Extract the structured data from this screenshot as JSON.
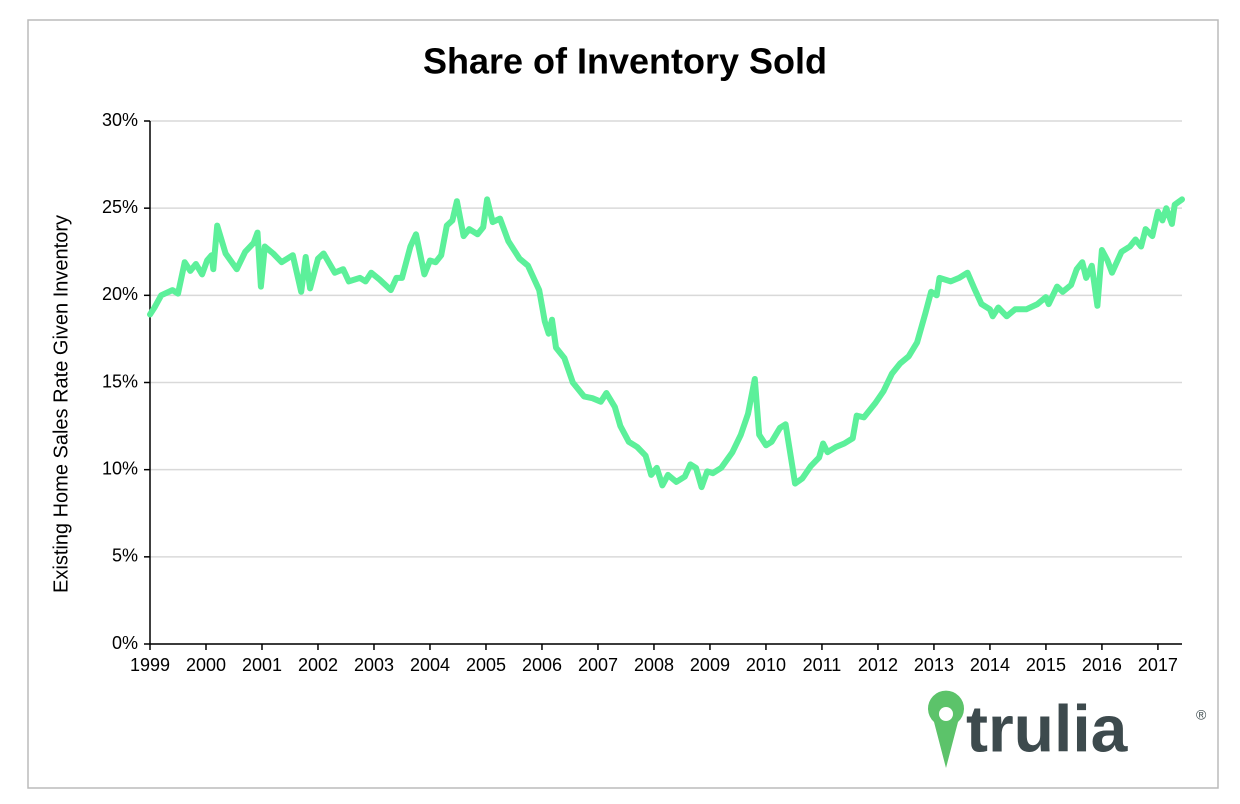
{
  "chart_data": {
    "type": "line",
    "title": "Share of Inventory Sold",
    "y_label": "Existing Home Sales Rate Given Inventory",
    "brand": "trulia",
    "brand_mark": "®",
    "xlim": [
      1999,
      2017.43
    ],
    "xticks": [
      1999,
      2000,
      2001,
      2002,
      2003,
      2004,
      2005,
      2006,
      2007,
      2008,
      2009,
      2010,
      2011,
      2012,
      2013,
      2014,
      2015,
      2016,
      2017
    ],
    "ylim": [
      0,
      30
    ],
    "yticks": [
      {
        "value": 0,
        "label": "0%"
      },
      {
        "value": 5,
        "label": "5%"
      },
      {
        "value": 10,
        "label": "10%"
      },
      {
        "value": 15,
        "label": "15%"
      },
      {
        "value": 20,
        "label": "20%"
      },
      {
        "value": 25,
        "label": "25%"
      },
      {
        "value": 30,
        "label": "30%"
      }
    ],
    "grid": true,
    "series": [
      {
        "name": "Share of Inventory Sold",
        "color": "#5cf09a",
        "x": [
          1999.0,
          1999.08,
          1999.2,
          1999.4,
          1999.5,
          1999.62,
          1999.72,
          1999.82,
          1999.93,
          2000.02,
          2000.1,
          2000.13,
          2000.2,
          2000.35,
          2000.55,
          2000.7,
          2000.85,
          2000.92,
          2000.98,
          2001.05,
          2001.2,
          2001.35,
          2001.55,
          2001.7,
          2001.78,
          2001.86,
          2002.0,
          2002.1,
          2002.3,
          2002.45,
          2002.55,
          2002.75,
          2002.85,
          2002.95,
          2003.1,
          2003.3,
          2003.4,
          2003.5,
          2003.65,
          2003.75,
          2003.9,
          2004.0,
          2004.1,
          2004.2,
          2004.3,
          2004.4,
          2004.48,
          2004.6,
          2004.7,
          2004.85,
          2004.95,
          2005.02,
          2005.12,
          2005.25,
          2005.4,
          2005.6,
          2005.75,
          2005.95,
          2006.05,
          2006.12,
          2006.18,
          2006.25,
          2006.4,
          2006.55,
          2006.75,
          2006.9,
          2007.05,
          2007.15,
          2007.3,
          2007.4,
          2007.55,
          2007.7,
          2007.85,
          2007.95,
          2008.05,
          2008.15,
          2008.25,
          2008.4,
          2008.55,
          2008.65,
          2008.75,
          2008.85,
          2008.95,
          2009.05,
          2009.2,
          2009.4,
          2009.55,
          2009.68,
          2009.8,
          2009.88,
          2010.0,
          2010.1,
          2010.25,
          2010.35,
          2010.45,
          2010.52,
          2010.65,
          2010.8,
          2010.95,
          2011.02,
          2011.1,
          2011.25,
          2011.4,
          2011.55,
          2011.62,
          2011.75,
          2011.95,
          2012.1,
          2012.25,
          2012.4,
          2012.55,
          2012.7,
          2012.85,
          2012.95,
          2013.05,
          2013.1,
          2013.3,
          2013.45,
          2013.6,
          2013.72,
          2013.85,
          2014.0,
          2014.05,
          2014.15,
          2014.3,
          2014.45,
          2014.65,
          2014.85,
          2015.0,
          2015.05,
          2015.2,
          2015.3,
          2015.45,
          2015.55,
          2015.65,
          2015.72,
          2015.82,
          2015.92,
          2016.0,
          2016.1,
          2016.18,
          2016.35,
          2016.5,
          2016.6,
          2016.7,
          2016.78,
          2016.9,
          2017.0,
          2017.08,
          2017.15,
          2017.25,
          2017.3,
          2017.43
        ],
        "values": [
          18.9,
          19.3,
          20.0,
          20.3,
          20.1,
          21.9,
          21.4,
          21.8,
          21.2,
          22.0,
          22.3,
          21.5,
          24.0,
          22.4,
          21.5,
          22.5,
          23.0,
          23.6,
          20.5,
          22.8,
          22.4,
          21.9,
          22.3,
          20.2,
          22.2,
          20.4,
          22.1,
          22.4,
          21.3,
          21.5,
          20.8,
          21.0,
          20.8,
          21.3,
          20.9,
          20.3,
          21.0,
          21.0,
          22.8,
          23.5,
          21.2,
          22.0,
          21.9,
          22.3,
          24.0,
          24.3,
          25.4,
          23.4,
          23.8,
          23.5,
          23.9,
          25.5,
          24.2,
          24.4,
          23.1,
          22.1,
          21.7,
          20.3,
          18.5,
          17.8,
          18.6,
          17.0,
          16.4,
          15.0,
          14.2,
          14.1,
          13.9,
          14.4,
          13.6,
          12.5,
          11.6,
          11.3,
          10.8,
          9.7,
          10.1,
          9.1,
          9.7,
          9.3,
          9.6,
          10.3,
          10.1,
          9.0,
          9.9,
          9.8,
          10.1,
          11.0,
          12.0,
          13.2,
          15.2,
          12.0,
          11.4,
          11.6,
          12.4,
          12.6,
          10.6,
          9.2,
          9.5,
          10.2,
          10.7,
          11.5,
          11.0,
          11.3,
          11.5,
          11.8,
          13.1,
          13.0,
          13.8,
          14.5,
          15.5,
          16.1,
          16.5,
          17.3,
          19.0,
          20.2,
          20.0,
          21.0,
          20.8,
          21.0,
          21.3,
          20.4,
          19.5,
          19.2,
          18.8,
          19.3,
          18.8,
          19.2,
          19.2,
          19.5,
          19.9,
          19.5,
          20.5,
          20.2,
          20.6,
          21.5,
          21.9,
          21.0,
          21.7,
          19.4,
          22.6,
          22.0,
          21.3,
          22.5,
          22.8,
          23.2,
          22.8,
          23.8,
          23.4,
          24.8,
          24.3,
          25.0,
          24.1,
          25.2,
          25.5
        ]
      }
    ]
  }
}
